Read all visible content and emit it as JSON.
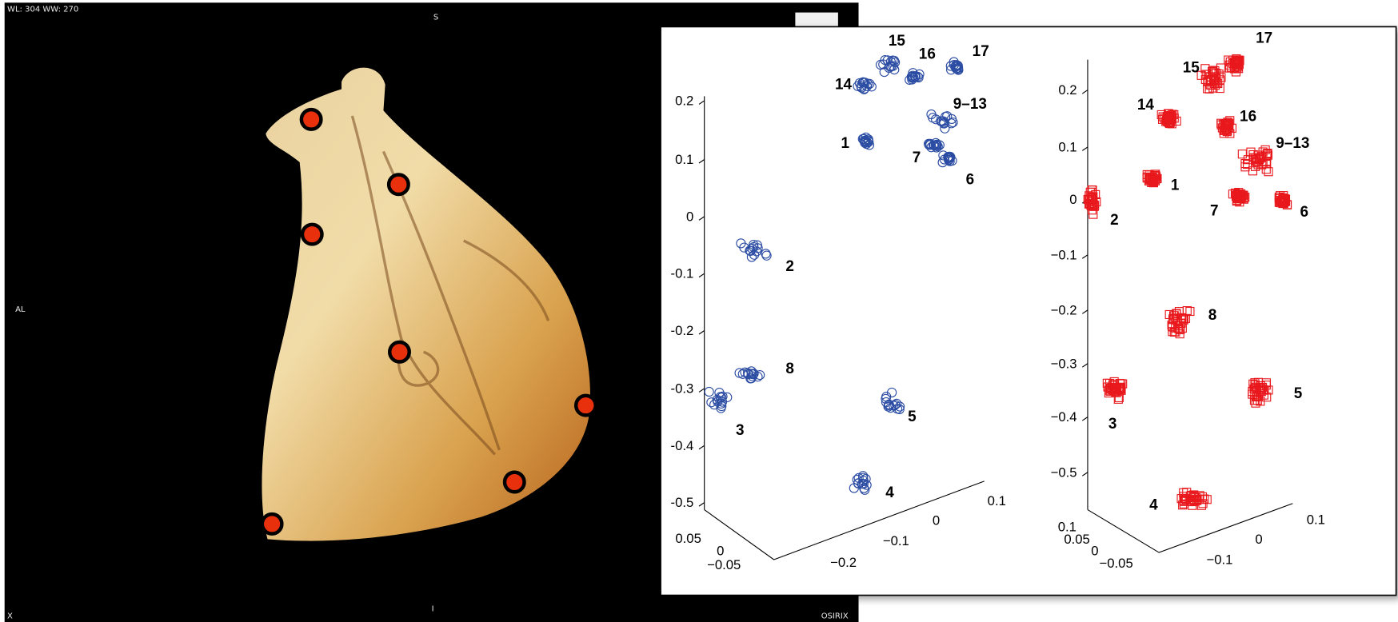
{
  "viewer": {
    "window_level": "WL: 304 WW: 270",
    "top": "S",
    "left": "AL",
    "bottom": "I",
    "corner": "X",
    "logo": "OSIRIX"
  },
  "plots": [
    {
      "marker": "circle",
      "color": "#2b4ca3",
      "yticks": [
        "0.2",
        "0.1",
        "0",
        "-0.1",
        "-0.2",
        "-0.3",
        "-0.4",
        "-0.5"
      ],
      "depth_ticks": [
        "0.05",
        "0",
        "−0.05"
      ],
      "x_ticks": [
        "−0.2",
        "−0.1",
        "0",
        "0.1"
      ],
      "clusters": [
        "1",
        "2",
        "3",
        "4",
        "5",
        "6",
        "7",
        "8",
        "9–13",
        "14",
        "15",
        "16",
        "17"
      ]
    },
    {
      "marker": "square",
      "color": "#e8181c",
      "yticks": [
        "0.2",
        "0.1",
        "0",
        "−0.1",
        "−0.2",
        "−0.3",
        "−0.4",
        "−0.5"
      ],
      "depth_ticks": [
        "0.1",
        "0.05",
        "0",
        "−0.05"
      ],
      "x_ticks": [
        "−0.1",
        "0",
        "0.1"
      ],
      "clusters": [
        "1",
        "2",
        "3",
        "4",
        "5",
        "6",
        "7",
        "8",
        "9–13",
        "14",
        "15",
        "16",
        "17"
      ]
    }
  ]
}
